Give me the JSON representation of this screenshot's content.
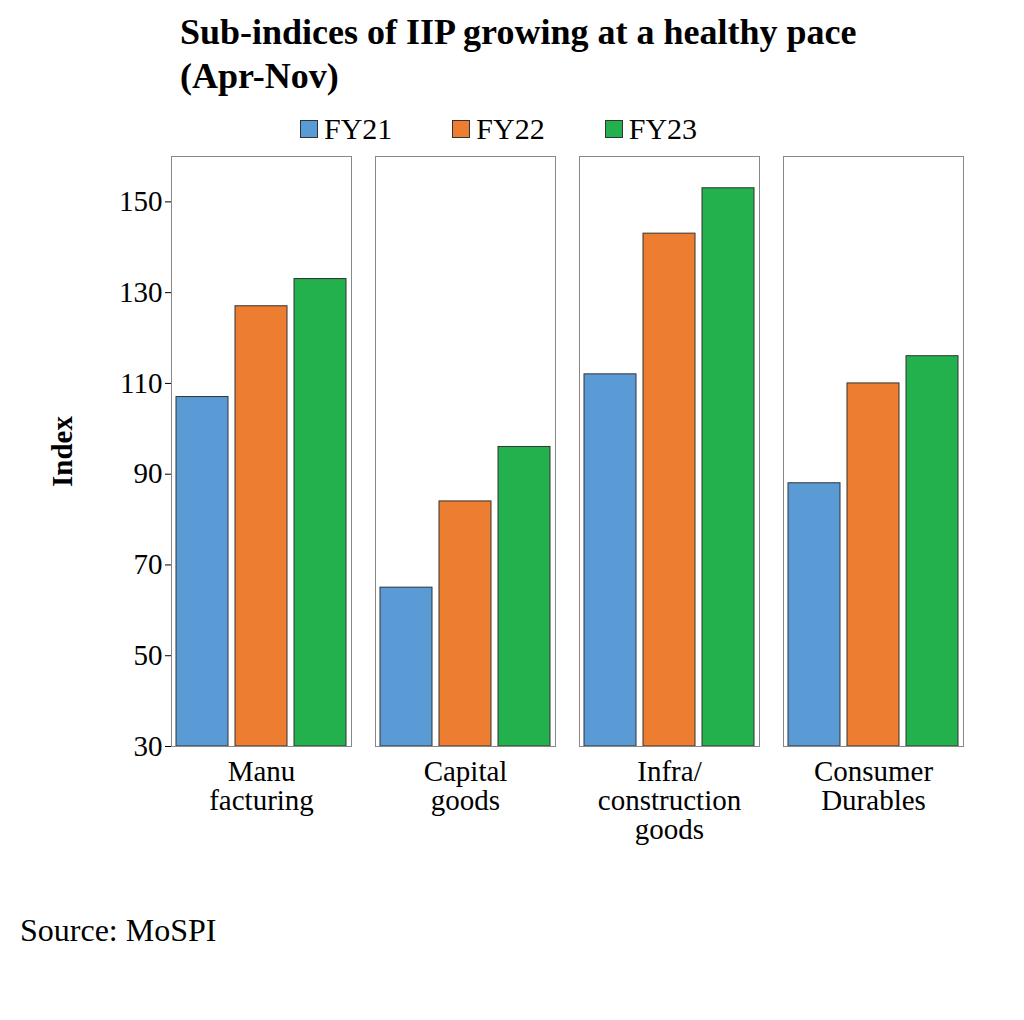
{
  "chart_data": {
    "type": "bar",
    "title": "Sub-indices of IIP growing at a healthy pace (Apr-Nov)",
    "y_label": "Index",
    "caption": "Source: MoSPI",
    "categories": [
      "Manu\nfacturing",
      "Capital\ngoods",
      "Infra/\nconstruction\ngoods",
      "Consumer\nDurables"
    ],
    "series": [
      {
        "name": "FY21",
        "color": "#5b9bd5",
        "values": [
          107,
          65,
          112,
          88
        ]
      },
      {
        "name": "FY22",
        "color": "#ed7d31",
        "values": [
          127,
          84,
          143,
          110
        ]
      },
      {
        "name": "FY23",
        "color": "#22b14c",
        "values": [
          133,
          96,
          153,
          116
        ]
      }
    ],
    "ylim": [
      30,
      160
    ],
    "yticks": [
      30,
      50,
      70,
      90,
      110,
      130,
      150
    ],
    "grid": false,
    "legend": "top"
  }
}
